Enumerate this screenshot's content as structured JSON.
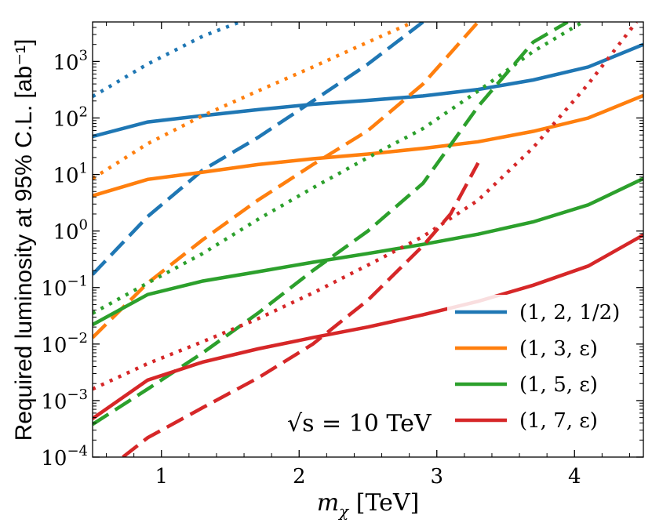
{
  "chart_data": {
    "type": "line",
    "xlabel": "m_χ [TeV]",
    "xlabel_main": "m",
    "xlabel_sub": "χ",
    "xlabel_unit": " [TeV]",
    "ylabel": "Required luminosity at 95% C.L. [ab⁻¹]",
    "xlim": [
      0.5,
      4.5
    ],
    "ylim": [
      0.0001,
      5000
    ],
    "yscale": "log",
    "x_ticks": [
      1,
      2,
      3,
      4
    ],
    "x_tick_labels": [
      "1",
      "2",
      "3",
      "4"
    ],
    "y_ticks": [
      0.0001,
      0.001,
      0.01,
      0.1,
      1,
      10,
      100,
      1000
    ],
    "y_tick_labels": [
      {
        "base": "10",
        "exp": "−4"
      },
      {
        "base": "10",
        "exp": "−3"
      },
      {
        "base": "10",
        "exp": "−2"
      },
      {
        "base": "10",
        "exp": "−1"
      },
      {
        "base": "10",
        "exp": "0"
      },
      {
        "base": "10",
        "exp": "1"
      },
      {
        "base": "10",
        "exp": "2"
      },
      {
        "base": "10",
        "exp": "3"
      }
    ],
    "grid": false,
    "legend_position": "lower-right",
    "annotation": "√s = 10 TeV",
    "series": [
      {
        "name": "(1, 2, 1/2)",
        "color": "#1f77b4",
        "style": "solid",
        "x": [
          0.5,
          0.9,
          1.3,
          1.7,
          2.1,
          2.5,
          2.9,
          3.3,
          3.7,
          4.1,
          4.5
        ],
        "y": [
          47,
          85,
          110,
          140,
          175,
          205,
          245,
          320,
          470,
          800,
          2000
        ]
      },
      {
        "style": "dashed",
        "color": "#1f77b4",
        "x": [
          0.5,
          0.9,
          1.3,
          1.7,
          2.1,
          2.5,
          2.9
        ],
        "y": [
          0.17,
          1.8,
          12,
          45,
          200,
          900,
          5000
        ]
      },
      {
        "style": "dotted",
        "color": "#1f77b4",
        "x": [
          0.5,
          0.9,
          1.3,
          1.57
        ],
        "y": [
          240,
          900,
          2800,
          5000
        ]
      },
      {
        "name": "(1, 3, ε)",
        "color": "#ff7f0e",
        "style": "solid",
        "x": [
          0.5,
          0.9,
          1.3,
          1.7,
          2.1,
          2.5,
          2.9,
          3.3,
          3.7,
          4.1,
          4.5
        ],
        "y": [
          4.2,
          8.2,
          11,
          15,
          19,
          23,
          29,
          38,
          58,
          100,
          250
        ]
      },
      {
        "style": "dashed",
        "color": "#ff7f0e",
        "x": [
          0.5,
          0.9,
          1.3,
          1.7,
          2.1,
          2.5,
          2.9,
          3.3
        ],
        "y": [
          0.013,
          0.12,
          0.7,
          3.5,
          15,
          60,
          400,
          5000
        ]
      },
      {
        "style": "dotted",
        "color": "#ff7f0e",
        "x": [
          0.5,
          0.9,
          1.3,
          1.7,
          2.1,
          2.5,
          2.83
        ],
        "y": [
          8.5,
          35,
          110,
          300,
          800,
          2200,
          5000
        ]
      },
      {
        "name": "(1, 5, ε)",
        "color": "#2ca02c",
        "style": "solid",
        "x": [
          0.5,
          0.9,
          1.3,
          1.7,
          2.1,
          2.5,
          2.9,
          3.3,
          3.7,
          4.1,
          4.5
        ],
        "y": [
          0.022,
          0.075,
          0.13,
          0.19,
          0.28,
          0.4,
          0.58,
          0.88,
          1.45,
          2.9,
          8.5
        ]
      },
      {
        "style": "dashed",
        "color": "#2ca02c",
        "x": [
          0.5,
          0.9,
          1.3,
          1.7,
          2.1,
          2.5,
          2.9,
          3.3,
          3.7,
          3.95
        ],
        "y": [
          0.00038,
          0.0016,
          0.007,
          0.035,
          0.2,
          1,
          7,
          160,
          2200,
          5000
        ]
      },
      {
        "style": "dotted",
        "color": "#2ca02c",
        "x": [
          0.5,
          0.9,
          1.3,
          1.7,
          2.1,
          2.5,
          2.9,
          3.3,
          3.7,
          4.06
        ],
        "y": [
          0.035,
          0.12,
          0.4,
          1.6,
          5.8,
          20,
          65,
          300,
          1500,
          5000
        ]
      },
      {
        "name": "(1, 7, ε)",
        "color": "#d62728",
        "style": "solid",
        "x": [
          0.5,
          0.9,
          1.3,
          1.7,
          2.1,
          2.5,
          2.9,
          3.3,
          3.7,
          4.1,
          4.5
        ],
        "y": [
          0.00048,
          0.0023,
          0.0048,
          0.0082,
          0.013,
          0.02,
          0.033,
          0.057,
          0.11,
          0.24,
          0.85
        ]
      },
      {
        "style": "dashed",
        "color": "#d62728",
        "x": [
          0.72,
          0.9,
          1.3,
          1.7,
          2.1,
          2.5,
          2.9,
          3.1,
          3.3
        ],
        "y": [
          0.0001,
          0.00022,
          0.00075,
          0.0025,
          0.01,
          0.06,
          0.55,
          2,
          16
        ]
      },
      {
        "style": "dotted",
        "color": "#d62728",
        "x": [
          0.5,
          0.9,
          1.3,
          1.7,
          2.1,
          2.5,
          2.9,
          3.3,
          3.7,
          4.1,
          4.45
        ],
        "y": [
          0.0016,
          0.0045,
          0.011,
          0.028,
          0.08,
          0.25,
          0.8,
          3.5,
          30,
          400,
          5000
        ]
      }
    ]
  }
}
